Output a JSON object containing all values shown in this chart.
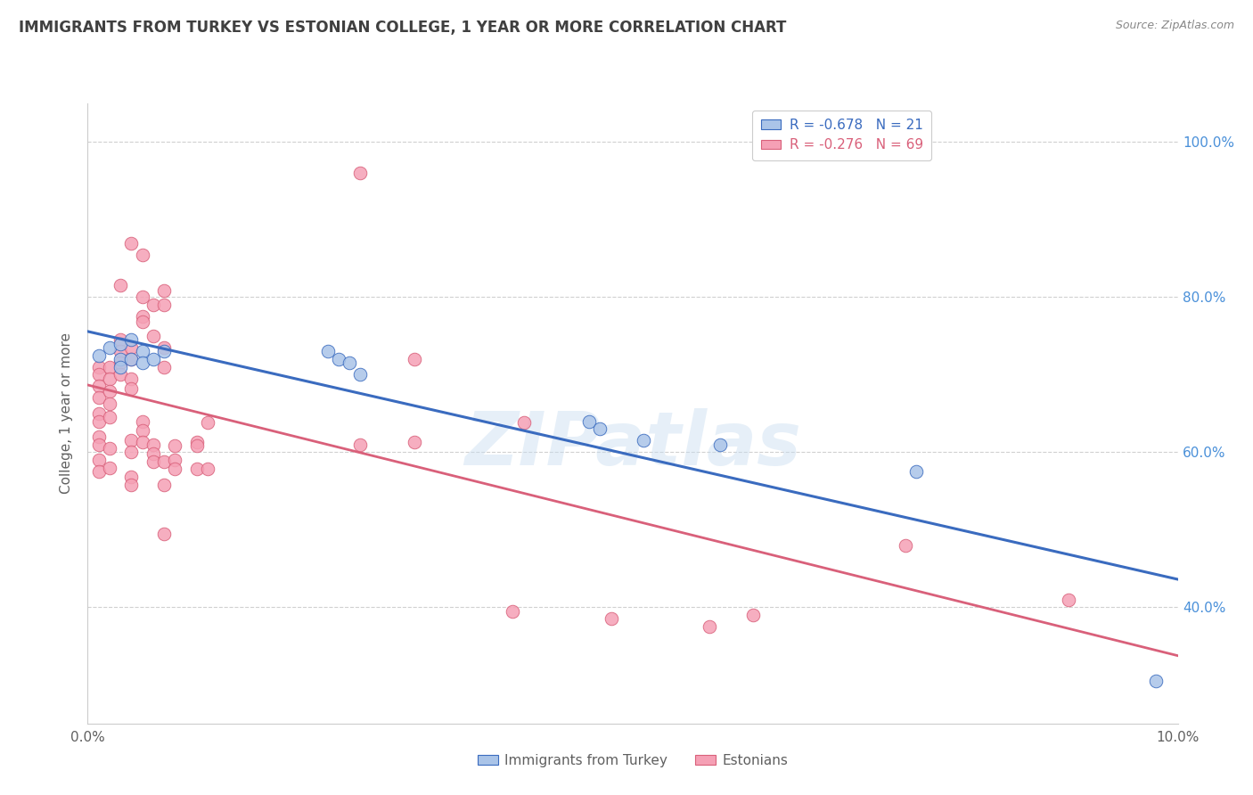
{
  "title": "IMMIGRANTS FROM TURKEY VS ESTONIAN COLLEGE, 1 YEAR OR MORE CORRELATION CHART",
  "source": "Source: ZipAtlas.com",
  "ylabel": "College, 1 year or more",
  "yticks": [
    40.0,
    60.0,
    80.0,
    100.0
  ],
  "xlim": [
    0.0,
    0.1
  ],
  "ylim": [
    0.25,
    1.05
  ],
  "legend_blue_r": "-0.678",
  "legend_blue_n": "21",
  "legend_pink_r": "-0.276",
  "legend_pink_n": "69",
  "watermark": "ZIPatlas",
  "blue_scatter": [
    [
      0.001,
      0.725
    ],
    [
      0.002,
      0.735
    ],
    [
      0.003,
      0.74
    ],
    [
      0.003,
      0.72
    ],
    [
      0.003,
      0.71
    ],
    [
      0.004,
      0.745
    ],
    [
      0.004,
      0.72
    ],
    [
      0.005,
      0.73
    ],
    [
      0.005,
      0.715
    ],
    [
      0.006,
      0.72
    ],
    [
      0.007,
      0.73
    ],
    [
      0.022,
      0.73
    ],
    [
      0.023,
      0.72
    ],
    [
      0.024,
      0.715
    ],
    [
      0.025,
      0.7
    ],
    [
      0.046,
      0.64
    ],
    [
      0.047,
      0.63
    ],
    [
      0.051,
      0.615
    ],
    [
      0.058,
      0.61
    ],
    [
      0.076,
      0.575
    ],
    [
      0.098,
      0.305
    ]
  ],
  "pink_scatter": [
    [
      0.001,
      0.71
    ],
    [
      0.001,
      0.7
    ],
    [
      0.001,
      0.685
    ],
    [
      0.001,
      0.67
    ],
    [
      0.001,
      0.65
    ],
    [
      0.001,
      0.64
    ],
    [
      0.001,
      0.62
    ],
    [
      0.001,
      0.61
    ],
    [
      0.001,
      0.59
    ],
    [
      0.001,
      0.575
    ],
    [
      0.002,
      0.71
    ],
    [
      0.002,
      0.695
    ],
    [
      0.002,
      0.678
    ],
    [
      0.002,
      0.662
    ],
    [
      0.002,
      0.645
    ],
    [
      0.002,
      0.605
    ],
    [
      0.002,
      0.58
    ],
    [
      0.003,
      0.815
    ],
    [
      0.003,
      0.745
    ],
    [
      0.003,
      0.73
    ],
    [
      0.003,
      0.715
    ],
    [
      0.003,
      0.7
    ],
    [
      0.004,
      0.87
    ],
    [
      0.004,
      0.735
    ],
    [
      0.004,
      0.72
    ],
    [
      0.004,
      0.695
    ],
    [
      0.004,
      0.682
    ],
    [
      0.004,
      0.615
    ],
    [
      0.004,
      0.6
    ],
    [
      0.004,
      0.568
    ],
    [
      0.004,
      0.558
    ],
    [
      0.005,
      0.855
    ],
    [
      0.005,
      0.8
    ],
    [
      0.005,
      0.775
    ],
    [
      0.005,
      0.768
    ],
    [
      0.005,
      0.64
    ],
    [
      0.005,
      0.628
    ],
    [
      0.005,
      0.613
    ],
    [
      0.006,
      0.79
    ],
    [
      0.006,
      0.75
    ],
    [
      0.006,
      0.61
    ],
    [
      0.006,
      0.598
    ],
    [
      0.006,
      0.588
    ],
    [
      0.007,
      0.808
    ],
    [
      0.007,
      0.79
    ],
    [
      0.007,
      0.735
    ],
    [
      0.007,
      0.71
    ],
    [
      0.007,
      0.588
    ],
    [
      0.007,
      0.558
    ],
    [
      0.007,
      0.495
    ],
    [
      0.008,
      0.608
    ],
    [
      0.008,
      0.59
    ],
    [
      0.008,
      0.578
    ],
    [
      0.01,
      0.613
    ],
    [
      0.01,
      0.608
    ],
    [
      0.01,
      0.578
    ],
    [
      0.011,
      0.638
    ],
    [
      0.011,
      0.578
    ],
    [
      0.025,
      0.96
    ],
    [
      0.025,
      0.61
    ],
    [
      0.03,
      0.72
    ],
    [
      0.03,
      0.613
    ],
    [
      0.039,
      0.395
    ],
    [
      0.04,
      0.638
    ],
    [
      0.048,
      0.385
    ],
    [
      0.057,
      0.375
    ],
    [
      0.061,
      0.39
    ],
    [
      0.075,
      0.48
    ],
    [
      0.09,
      0.41
    ]
  ],
  "blue_color": "#aac4e8",
  "pink_color": "#f5a0b5",
  "blue_line_color": "#3a6bbf",
  "pink_line_color": "#d9607a",
  "bg_color": "#ffffff",
  "grid_color": "#d0d0d0",
  "title_color": "#404040",
  "axis_label_color": "#606060",
  "right_axis_color": "#4a90d9"
}
